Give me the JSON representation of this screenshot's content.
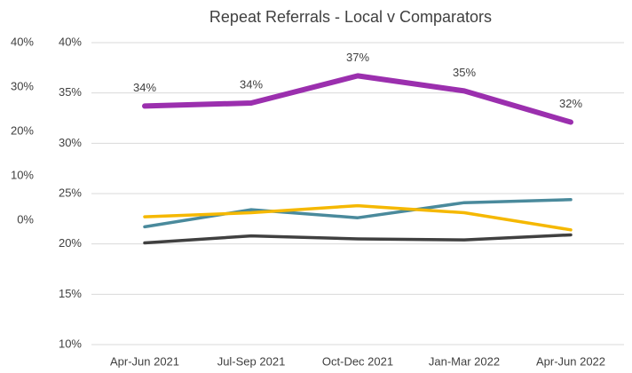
{
  "chart_data": {
    "type": "line",
    "title": "Repeat Referrals - Local v Comparators",
    "categories": [
      "Apr-Jun 2021",
      "Jul-Sep 2021",
      "Oct-Dec 2021",
      "Jan-Mar 2022",
      "Apr-Jun 2022"
    ],
    "series": [
      {
        "color": "#9b2fae",
        "values": [
          33.7,
          34.0,
          36.7,
          35.2,
          32.1
        ],
        "value_labels": [
          "34%",
          "34%",
          "37%",
          "35%",
          "32%"
        ]
      },
      {
        "color": "#4a8a9c",
        "values": [
          21.7,
          23.4,
          22.6,
          24.1,
          24.4
        ]
      },
      {
        "color": "#f5b800",
        "values": [
          22.7,
          23.1,
          23.8,
          23.1,
          21.4
        ]
      },
      {
        "color": "#404040",
        "values": [
          20.1,
          20.8,
          20.5,
          20.4,
          20.9
        ]
      }
    ],
    "ylim": [
      10,
      40
    ],
    "yticks": [
      {
        "value": 10,
        "label": "10%"
      },
      {
        "value": 15,
        "label": "15%"
      },
      {
        "value": 20,
        "label": "20%"
      },
      {
        "value": 25,
        "label": "25%"
      },
      {
        "value": 30,
        "label": "30%"
      },
      {
        "value": 35,
        "label": "35%"
      },
      {
        "value": 40,
        "label": "40%"
      }
    ],
    "y2lim": [
      -28,
      40
    ],
    "y2ticks": [
      {
        "value": 0,
        "label": "0%"
      },
      {
        "value": 10,
        "label": "10%"
      },
      {
        "value": 20,
        "label": "20%"
      },
      {
        "value": 30,
        "label": "30%"
      },
      {
        "value": 40,
        "label": "40%"
      }
    ],
    "grid": true
  }
}
